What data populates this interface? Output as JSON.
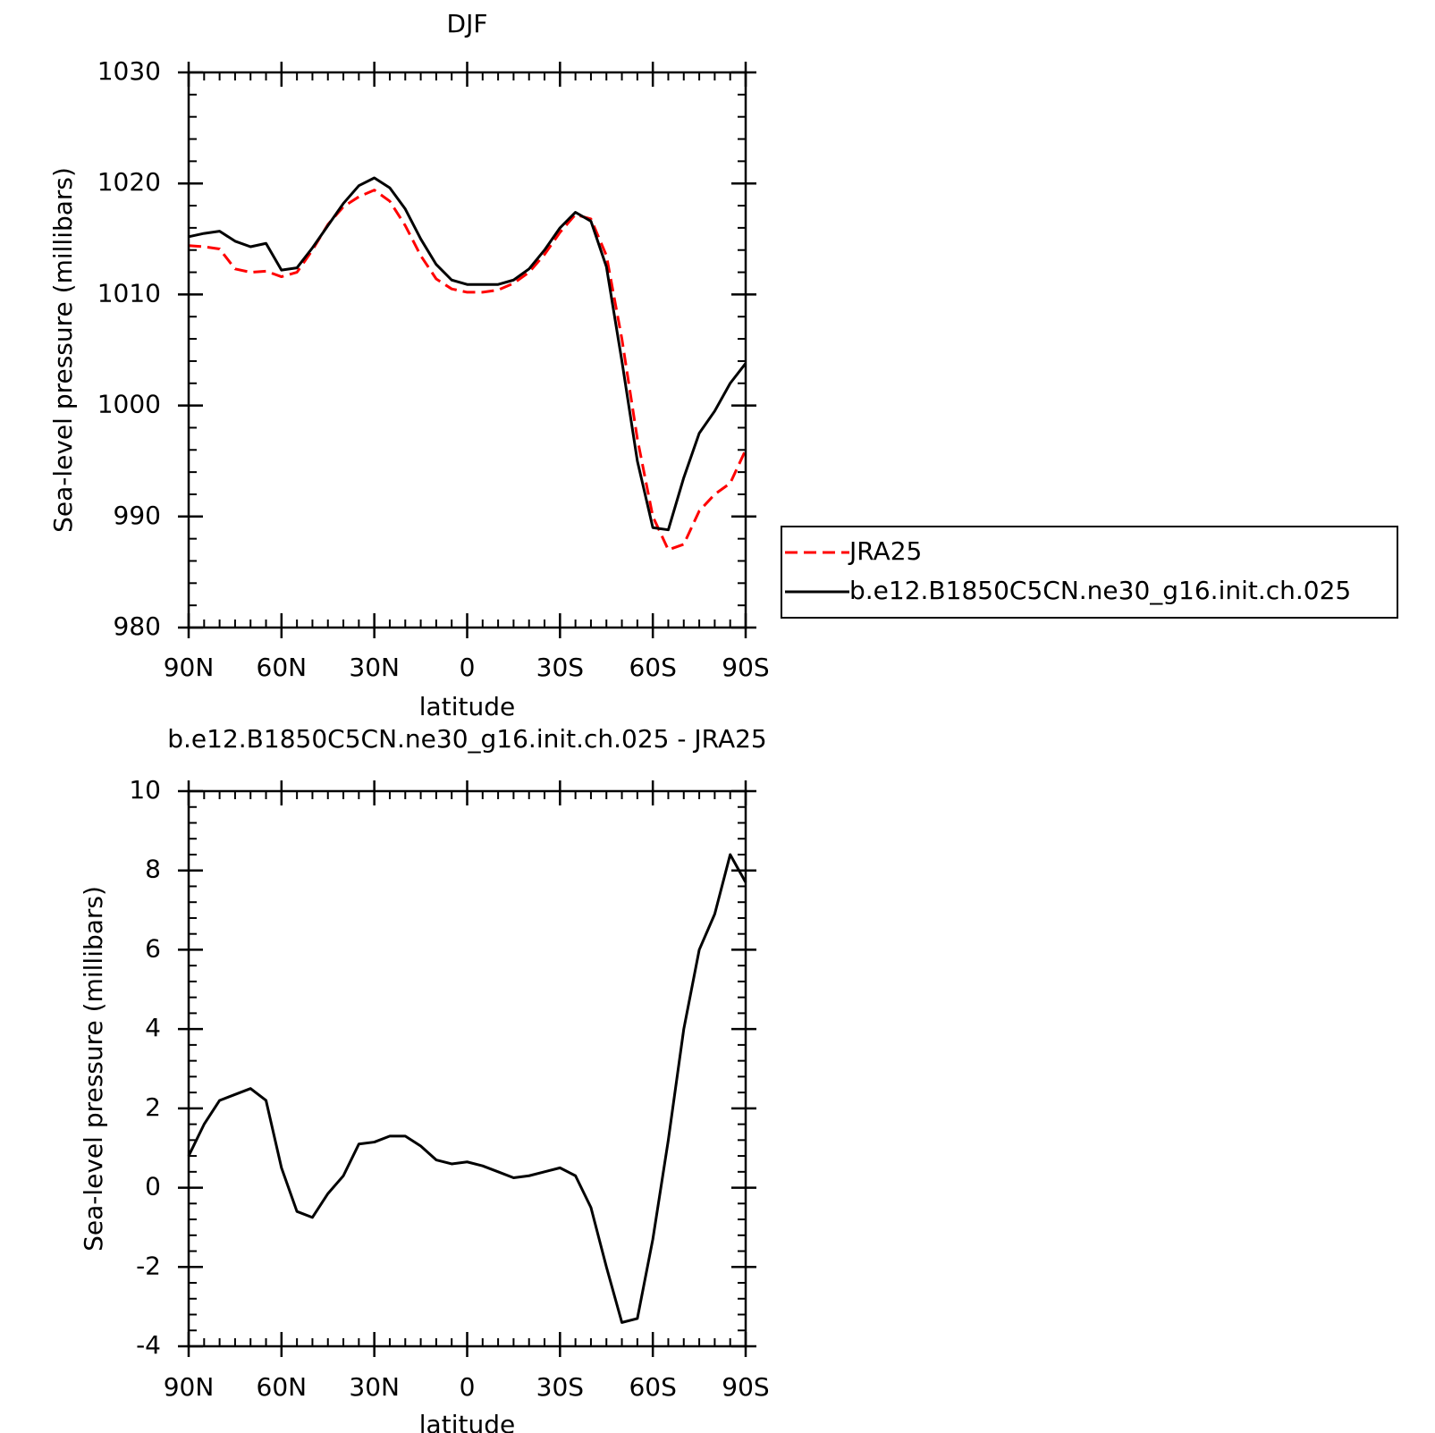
{
  "chart_data": [
    {
      "type": "line",
      "title": "DJF",
      "xlabel": "latitude",
      "ylabel": "Sea-level pressure (millibars)",
      "x": [
        90,
        85,
        80,
        75,
        70,
        65,
        60,
        55,
        50,
        45,
        40,
        35,
        30,
        25,
        20,
        15,
        10,
        5,
        0,
        -5,
        -10,
        -15,
        -20,
        -25,
        -30,
        -35,
        -40,
        -45,
        -50,
        -55,
        -60,
        -65,
        -70,
        -75,
        -80,
        -85,
        -90
      ],
      "xlim": [
        90,
        -90
      ],
      "xticks": [
        {
          "value": 90,
          "label": "90N"
        },
        {
          "value": 60,
          "label": "60N"
        },
        {
          "value": 30,
          "label": "30N"
        },
        0,
        {
          "value": -30,
          "label": "30S"
        },
        {
          "value": -60,
          "label": "60S"
        },
        {
          "value": -90,
          "label": "90S"
        }
      ],
      "ylim": [
        980,
        1030
      ],
      "yticks": [
        980,
        990,
        1000,
        1010,
        1020,
        1030
      ],
      "legend": "outside-right",
      "series": [
        {
          "name": "JRA25",
          "color": "#ff0000",
          "dash": true,
          "values": [
            1014.4,
            1014.3,
            1014.1,
            1012.3,
            1012.0,
            1012.1,
            1011.6,
            1012.0,
            1014.0,
            1016.3,
            1017.9,
            1018.8,
            1019.4,
            1018.4,
            1016.2,
            1013.5,
            1011.4,
            1010.5,
            1010.2,
            1010.2,
            1010.4,
            1011.0,
            1012.0,
            1013.6,
            1015.6,
            1017.2,
            1016.8,
            1013.5,
            1006.0,
            997.0,
            990.0,
            987.0,
            987.5,
            990.5,
            992.0,
            993.0,
            996.0
          ]
        },
        {
          "name": "b.e12.B1850C5CN.ne30_g16.init.ch.025",
          "color": "#000000",
          "dash": false,
          "values": [
            1015.2,
            1015.5,
            1015.7,
            1014.8,
            1014.3,
            1014.6,
            1012.2,
            1012.4,
            1014.2,
            1016.2,
            1018.2,
            1019.8,
            1020.5,
            1019.6,
            1017.7,
            1015.0,
            1012.7,
            1011.3,
            1010.9,
            1010.9,
            1010.9,
            1011.3,
            1012.3,
            1014.0,
            1016.0,
            1017.4,
            1016.6,
            1012.5,
            1004.0,
            995.0,
            989.0,
            988.8,
            993.5,
            997.5,
            999.5,
            1002.0,
            1003.8
          ]
        }
      ]
    },
    {
      "type": "line",
      "title": "b.e12.B1850C5CN.ne30_g16.init.ch.025 - JRA25",
      "xlabel": "latitude",
      "ylabel": "Sea-level pressure (millibars)",
      "x": [
        90,
        85,
        80,
        75,
        70,
        65,
        60,
        55,
        50,
        45,
        40,
        35,
        30,
        25,
        20,
        15,
        10,
        5,
        0,
        -5,
        -10,
        -15,
        -20,
        -25,
        -30,
        -35,
        -40,
        -45,
        -50,
        -55,
        -60,
        -65,
        -70,
        -75,
        -80,
        -85,
        -90
      ],
      "xlim": [
        90,
        -90
      ],
      "xticks": [
        {
          "value": 90,
          "label": "90N"
        },
        {
          "value": 60,
          "label": "60N"
        },
        {
          "value": 30,
          "label": "30N"
        },
        0,
        {
          "value": -30,
          "label": "30S"
        },
        {
          "value": -60,
          "label": "60S"
        },
        {
          "value": -90,
          "label": "90S"
        }
      ],
      "ylim": [
        -4,
        10
      ],
      "yticks": [
        -4,
        -2,
        0,
        2,
        4,
        6,
        8,
        10
      ],
      "series": [
        {
          "color": "#000000",
          "dash": false,
          "values": [
            0.8,
            1.6,
            2.2,
            2.35,
            2.5,
            2.2,
            0.5,
            -0.6,
            -0.75,
            -0.15,
            0.3,
            1.1,
            1.15,
            1.3,
            1.3,
            1.05,
            0.7,
            0.6,
            0.65,
            0.55,
            0.4,
            0.25,
            0.3,
            0.4,
            0.5,
            0.3,
            -0.5,
            -2.0,
            -3.4,
            -3.3,
            -1.3,
            1.2,
            4.0,
            6.0,
            6.9,
            8.4,
            7.7
          ]
        }
      ]
    }
  ]
}
